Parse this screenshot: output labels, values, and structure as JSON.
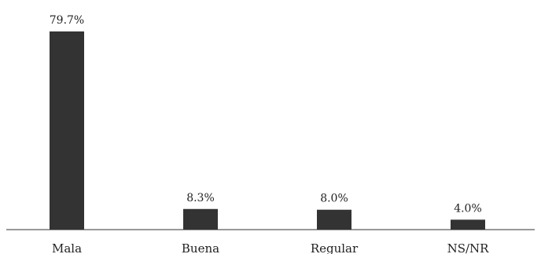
{
  "chart_data": {
    "type": "bar",
    "title": "",
    "xlabel": "",
    "ylabel": "",
    "categories": [
      "Mala",
      "Buena",
      "Regular",
      "NS/NR"
    ],
    "values": [
      79.7,
      8.3,
      8.0,
      4.0
    ],
    "data_labels": [
      "79.7%",
      "8.3%",
      "8.0%",
      "4.0%"
    ],
    "ylim": [
      0,
      100
    ],
    "grid": false,
    "legend": "none",
    "bar_color": "#333333",
    "axis_color": "#333333"
  }
}
